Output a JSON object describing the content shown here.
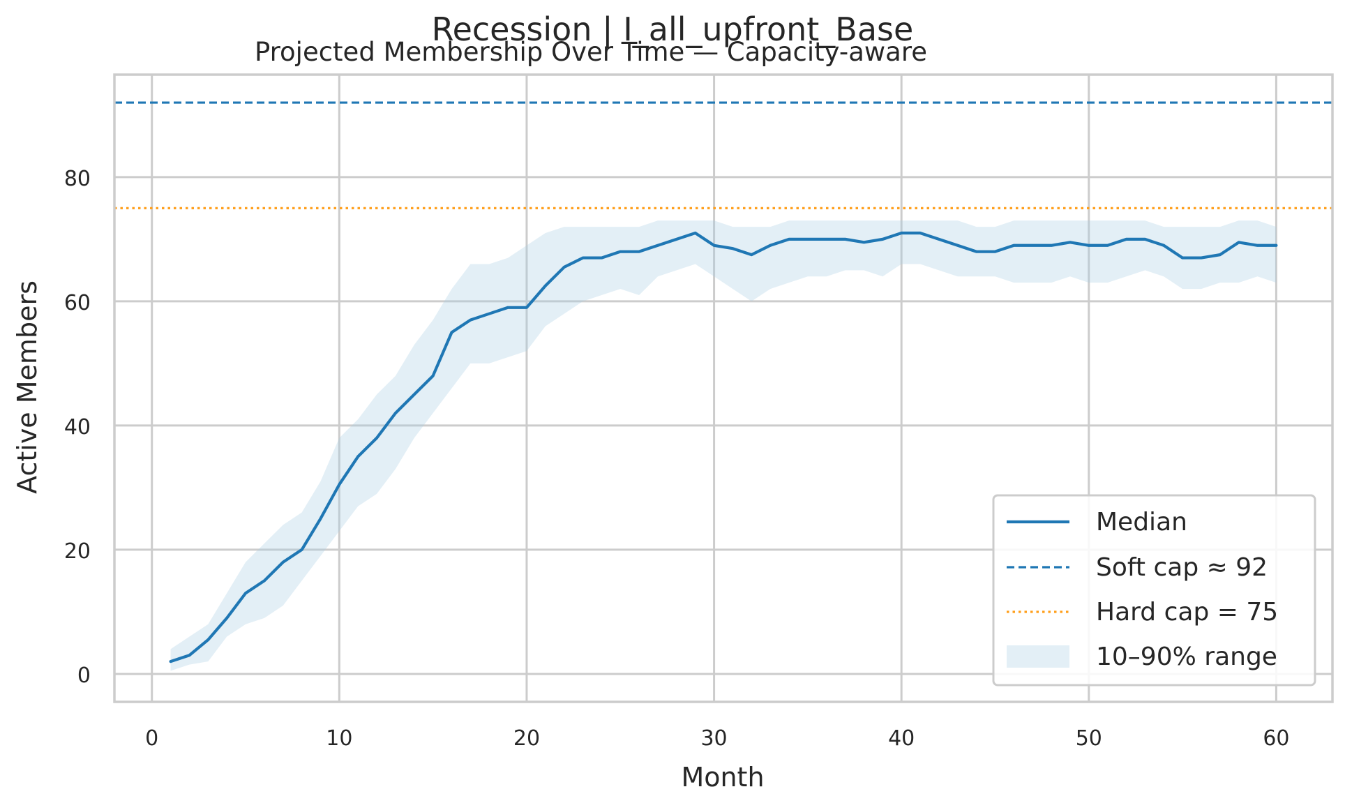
{
  "figure": {
    "suptitle": "Recession | I_all_upfront_Base",
    "title": "Projected Membership Over Time — Capacity-aware"
  },
  "chart_data": {
    "type": "line",
    "title": "Projected Membership Over Time — Capacity-aware",
    "suptitle": "Recession | I_all_upfront_Base",
    "xlabel": "Month",
    "ylabel": "Active Members",
    "xlim": [
      -2,
      63
    ],
    "ylim": [
      -4.5,
      96.5
    ],
    "xticks": [
      0,
      10,
      20,
      30,
      40,
      50,
      60
    ],
    "yticks": [
      0,
      20,
      40,
      60,
      80
    ],
    "xtick_labels": [
      "0",
      "10",
      "20",
      "30",
      "40",
      "50",
      "60"
    ],
    "ytick_labels": [
      "0",
      "20",
      "40",
      "60",
      "80"
    ],
    "grid": true,
    "legend_position": "lower-right",
    "x": [
      1,
      2,
      3,
      4,
      5,
      6,
      7,
      8,
      9,
      10,
      11,
      12,
      13,
      14,
      15,
      16,
      17,
      18,
      19,
      20,
      21,
      22,
      23,
      24,
      25,
      26,
      27,
      28,
      29,
      30,
      31,
      32,
      33,
      34,
      35,
      36,
      37,
      38,
      39,
      40,
      41,
      42,
      43,
      44,
      45,
      46,
      47,
      48,
      49,
      50,
      51,
      52,
      53,
      54,
      55,
      56,
      57,
      58,
      59,
      60
    ],
    "series": [
      {
        "name": "Median",
        "kind": "line",
        "color": "#1f77b4",
        "values": [
          2,
          3,
          5.5,
          9,
          13,
          15,
          18,
          20,
          25,
          30.5,
          35,
          38,
          42,
          45,
          48,
          55,
          57,
          58,
          59,
          59,
          62.5,
          65.5,
          67,
          67,
          68,
          68,
          69,
          70,
          71,
          69,
          68.5,
          67.5,
          69,
          70,
          70,
          70,
          70,
          69.5,
          70,
          71,
          71,
          70,
          69,
          68,
          68,
          69,
          69,
          69,
          69.5,
          69,
          69,
          70,
          70,
          69,
          67,
          67,
          67.5,
          69.5,
          69,
          69
        ]
      },
      {
        "name": "10–90% range",
        "kind": "band",
        "color": "#a8cce3",
        "lower": [
          0.5,
          1.5,
          2,
          6,
          8,
          9,
          11,
          15,
          19,
          23,
          27,
          29,
          33,
          38,
          42,
          46,
          50,
          50,
          51,
          52,
          56,
          58,
          60,
          61,
          62,
          61,
          64,
          65,
          66,
          64,
          62,
          60,
          62,
          63,
          64,
          64,
          65,
          65,
          64,
          66,
          66,
          65,
          64,
          64,
          64,
          63,
          63,
          63,
          64,
          63,
          63,
          64,
          65,
          64,
          62,
          62,
          63,
          63,
          64,
          63
        ],
        "upper": [
          4,
          6,
          8,
          13,
          18,
          21,
          24,
          26,
          31,
          38,
          41,
          45,
          48,
          53,
          57,
          62,
          66,
          66,
          67,
          69,
          71,
          72,
          72,
          72,
          72,
          72,
          73,
          73,
          73,
          73,
          72,
          72,
          72,
          73,
          73,
          73,
          73,
          73,
          73,
          73,
          73,
          73,
          73,
          72,
          72,
          73,
          73,
          73,
          73,
          73,
          73,
          73,
          73,
          72,
          72,
          72,
          72,
          73,
          73,
          72
        ]
      }
    ],
    "reference_lines": [
      {
        "name": "Soft cap ≈ 92",
        "y": 92,
        "color": "#1f77b4",
        "style": "dashed"
      },
      {
        "name": "Hard cap = 75",
        "y": 75,
        "color": "#ff9f1c",
        "style": "dotted"
      }
    ],
    "legend": [
      {
        "label": "Median",
        "style": "solid",
        "color": "#1f77b4"
      },
      {
        "label": "Soft cap ≈ 92",
        "style": "dashed",
        "color": "#1f77b4"
      },
      {
        "label": "Hard cap = 75",
        "style": "dotted",
        "color": "#ff9f1c"
      },
      {
        "label": "10–90% range",
        "style": "band",
        "color": "#a8cce3"
      }
    ]
  }
}
